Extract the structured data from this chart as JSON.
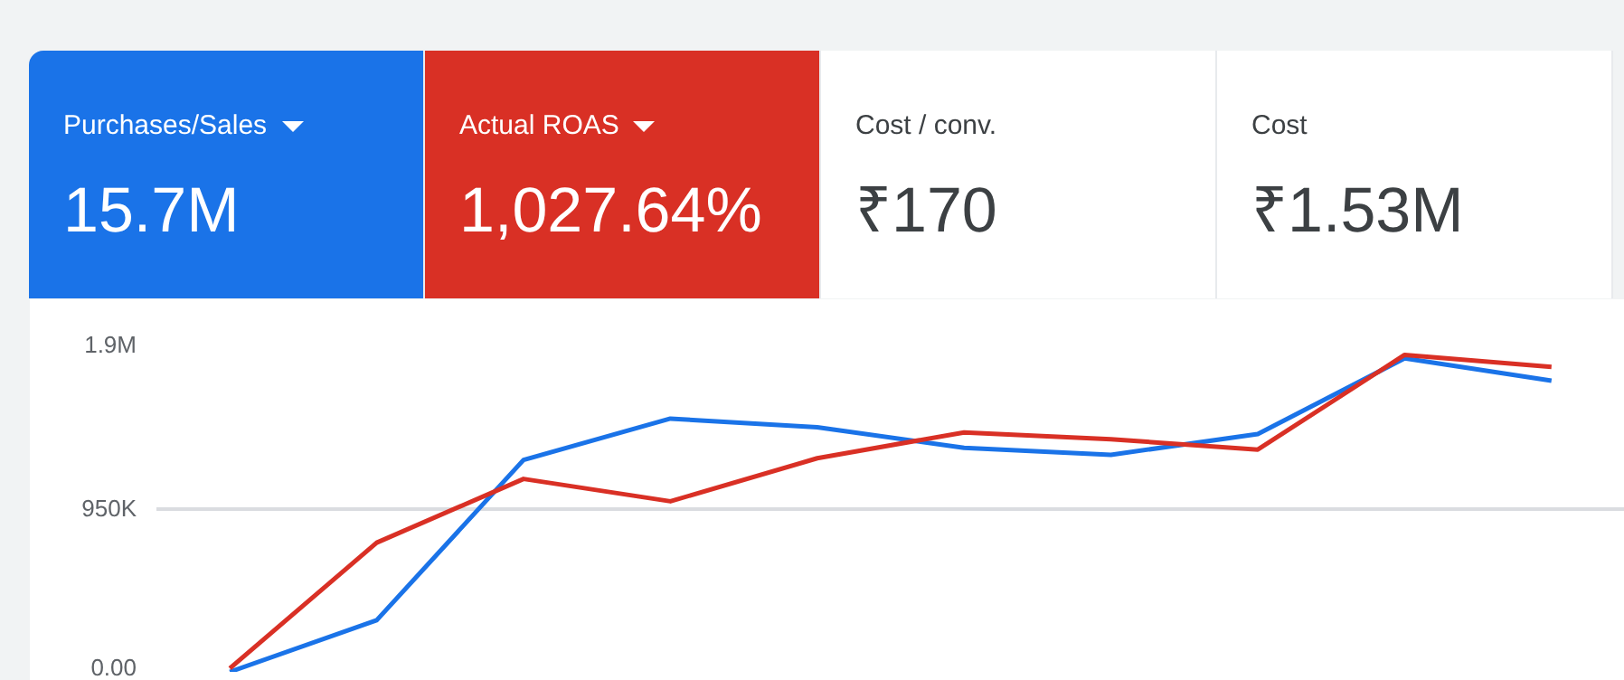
{
  "chart_data": [
    {
      "type": "other",
      "annotations": [
        "Purchases/Sales",
        "15.7M",
        "Actual ROAS",
        "1,027.64%",
        "Cost / conv.",
        "₹170",
        "Cost",
        "₹1.53M"
      ],
      "colors": [
        "#1a73e8",
        "#d93025",
        null,
        null
      ]
    },
    {
      "type": "line",
      "categories": [
        null,
        null,
        null,
        null,
        null,
        null,
        null,
        null,
        null,
        null
      ],
      "ylim": [
        0,
        1900000
      ],
      "yticks": [
        {
          "value": 0,
          "label": "0.00"
        },
        {
          "value": 950000,
          "label": "950K"
        },
        {
          "value": 1900000,
          "label": "1.9M"
        }
      ],
      "grid": "y",
      "tick_labels": "y",
      "marker": "none",
      "line_style": "solid",
      "series": [
        {
          "color": "#1a73e8",
          "values": [
            0,
            300000,
            1230000,
            1470000,
            1420000,
            1300000,
            1260000,
            1380000,
            1820000,
            1690000
          ]
        },
        {
          "color": "#d93025",
          "values": [
            20000,
            750000,
            1120000,
            990000,
            1240000,
            1390000,
            1350000,
            1290000,
            1840000,
            1770000
          ]
        }
      ]
    }
  ]
}
